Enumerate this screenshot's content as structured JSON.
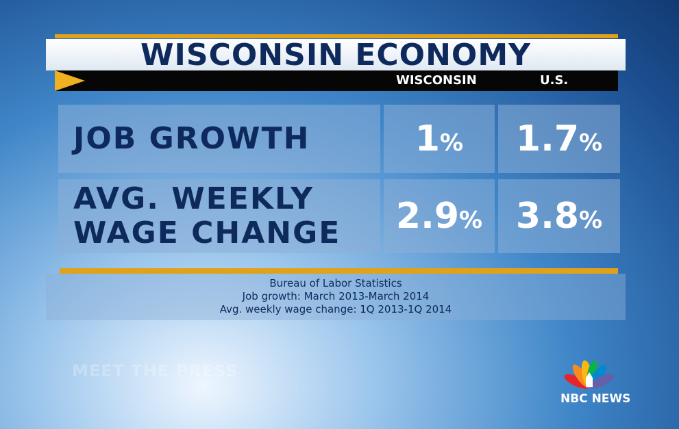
{
  "header": {
    "title": "WISCONSIN ECONOMY",
    "columns": [
      "WISCONSIN",
      "U.S."
    ]
  },
  "table": {
    "rows": [
      {
        "label": [
          "JOB  GROWTH"
        ],
        "cells": [
          {
            "number": "1",
            "unit": "%"
          },
          {
            "number": "1.7",
            "unit": "%"
          }
        ]
      },
      {
        "label": [
          "AVG. WEEKLY",
          "WAGE CHANGE"
        ],
        "cells": [
          {
            "number": "2.9",
            "unit": "%"
          },
          {
            "number": "3.8",
            "unit": "%"
          }
        ]
      }
    ]
  },
  "source": [
    "Bureau of Labor Statistics",
    "Job growth: March 2013-March 2014",
    "Avg. weekly wage change: 1Q 2013-1Q 2014"
  ],
  "watermark": "MEET THE PRESS",
  "logo": "NBC NEWS"
}
